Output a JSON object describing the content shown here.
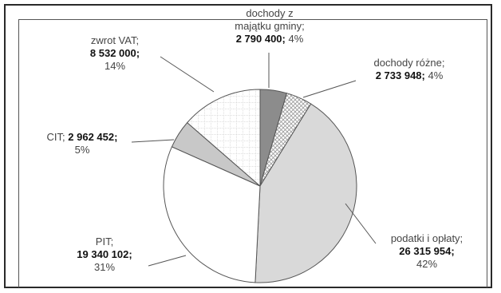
{
  "chart_data": {
    "type": "pie",
    "title": "",
    "slices": [
      {
        "name": "dochody z majątku gminy",
        "value": 2790400,
        "value_label": "2 790 400;",
        "percent": "4%",
        "fill": "#8c8c8c",
        "pattern": "solid"
      },
      {
        "name": "dochody różne",
        "value": 2733948,
        "value_label": "2 733 948;",
        "percent": "4%",
        "fill": "#ffffff",
        "pattern": "crosshatch"
      },
      {
        "name": "podatki i opłaty",
        "value": 26315954,
        "value_label": "26 315 954;",
        "percent": "42%",
        "fill": "#d9d9d9",
        "pattern": "solid"
      },
      {
        "name": "PIT",
        "value": 19340102,
        "value_label": "19 340 102;",
        "percent": "31%",
        "fill": "#ffffff",
        "pattern": "solid"
      },
      {
        "name": "CIT",
        "value": 2962452,
        "value_label": "2 962 452;",
        "percent": "5%",
        "fill": "#c8c8c8",
        "pattern": "solid"
      },
      {
        "name": "zwrot VAT",
        "value": 8532000,
        "value_label": "8 532 000;",
        "percent": "14%",
        "fill": "#ffffff",
        "pattern": "grid"
      }
    ]
  },
  "labels": {
    "majatek": {
      "line1": "dochody z",
      "line2": "majątku gminy;",
      "value": "2 790 400;",
      "percent": "4%"
    },
    "rozne": {
      "line1": "dochody różne;",
      "value": "2 733 948;",
      "percent": "4%"
    },
    "podatki": {
      "line1": "podatki i opłaty;",
      "value": "26 315 954;",
      "percent": "42%"
    },
    "pit": {
      "line1": "PIT;",
      "value": "19 340 102;",
      "percent": "31%"
    },
    "cit": {
      "line1": "CIT;",
      "value": "2 962 452;",
      "percent": "5%"
    },
    "vat": {
      "line1": "zwrot VAT;",
      "value": "8 532 000;",
      "percent": "14%"
    }
  },
  "colors": {
    "border": "#2a2a2a",
    "slice_stroke": "#555555"
  }
}
